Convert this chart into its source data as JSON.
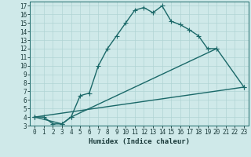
{
  "xlabel": "Humidex (Indice chaleur)",
  "bg_color": "#cfe9e9",
  "grid_color": "#b0d4d4",
  "line_color": "#1a6868",
  "xlim": [
    -0.5,
    23.5
  ],
  "ylim": [
    3,
    17.5
  ],
  "xticks": [
    0,
    1,
    2,
    3,
    4,
    5,
    6,
    7,
    8,
    9,
    10,
    11,
    12,
    13,
    14,
    15,
    16,
    17,
    18,
    19,
    20,
    21,
    22,
    23
  ],
  "yticks": [
    3,
    4,
    5,
    6,
    7,
    8,
    9,
    10,
    11,
    12,
    13,
    14,
    15,
    16,
    17
  ],
  "curve1_x": [
    0,
    1,
    2,
    3,
    4,
    5,
    6,
    7,
    8,
    9,
    10,
    11,
    12,
    13,
    14,
    15,
    16,
    17,
    18,
    19,
    20
  ],
  "curve1_y": [
    4.0,
    4.0,
    3.2,
    3.2,
    4.0,
    6.5,
    6.8,
    10.0,
    12.0,
    13.5,
    15.0,
    16.5,
    16.8,
    16.2,
    17.0,
    15.2,
    14.8,
    14.2,
    13.5,
    12.0,
    12.0
  ],
  "curve2_x": [
    0,
    3,
    4,
    20,
    23
  ],
  "curve2_y": [
    4.0,
    3.2,
    4.0,
    12.0,
    7.5
  ],
  "curve3_x": [
    0,
    23
  ],
  "curve3_y": [
    4.0,
    7.5
  ],
  "markersize": 4,
  "linewidth": 1.0
}
